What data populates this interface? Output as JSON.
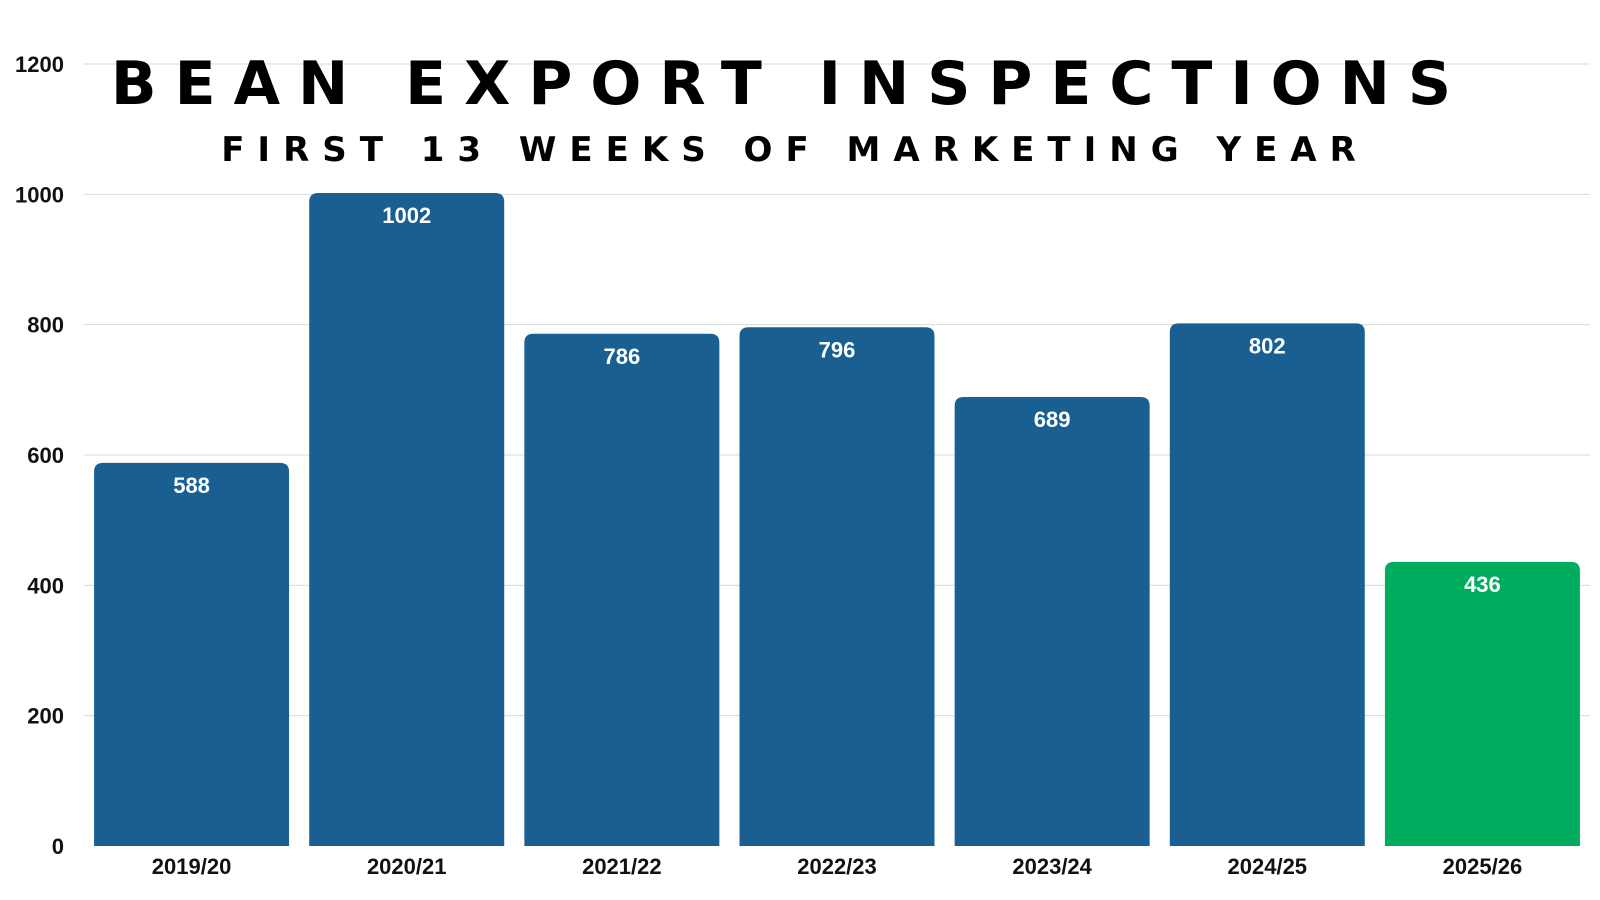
{
  "chart_data": {
    "type": "bar",
    "title": "BEAN EXPORT INSPECTIONS",
    "subtitle": "FIRST 13 WEEKS OF MARKETING YEAR",
    "xlabel": "",
    "ylabel": "",
    "categories": [
      "2019/20",
      "2020/21",
      "2021/22",
      "2022/23",
      "2023/24",
      "2024/25",
      "2025/26"
    ],
    "values": [
      588,
      1002,
      786,
      796,
      689,
      802,
      436
    ],
    "bar_colors": [
      "#1a5f91",
      "#1a5f91",
      "#1a5f91",
      "#1a5f91",
      "#1a5f91",
      "#1a5f91",
      "#00ad5f"
    ],
    "ylim": [
      0,
      1200
    ],
    "yticks": [
      0,
      200,
      400,
      600,
      800,
      1000,
      1200
    ],
    "grid": true,
    "legend": "none",
    "data_labels": true
  }
}
